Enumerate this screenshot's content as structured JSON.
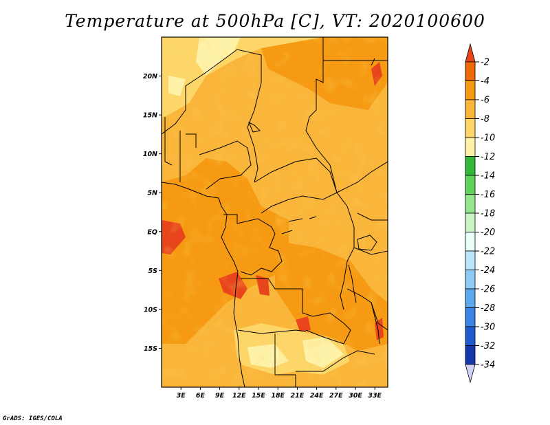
{
  "chart_data": {
    "type": "heatmap",
    "title": "Temperature at 500hPa [C], VT: 2020100600",
    "variable": "Temperature at 500hPa",
    "units": "C",
    "valid_time": "2020100600",
    "x_axis": {
      "ticks": [
        3,
        6,
        9,
        12,
        15,
        18,
        21,
        24,
        27,
        30,
        33
      ],
      "labels": [
        "3E",
        "6E",
        "9E",
        "12E",
        "15E",
        "18E",
        "21E",
        "24E",
        "27E",
        "30E",
        "33E"
      ],
      "range": [
        0,
        35
      ]
    },
    "y_axis": {
      "ticks": [
        20,
        15,
        10,
        5,
        0,
        -5,
        -10,
        -15
      ],
      "labels": [
        "20N",
        "15N",
        "10N",
        "5N",
        "EQ",
        "5S",
        "10S",
        "15S"
      ],
      "range": [
        -20,
        25
      ]
    },
    "colorbar": {
      "levels": [
        "-2",
        "-4",
        "-6",
        "-8",
        "-10",
        "-12",
        "-14",
        "-16",
        "-18",
        "-20",
        "-22",
        "-24",
        "-26",
        "-28",
        "-30",
        "-32",
        "-34"
      ],
      "colors": [
        "#e8451c",
        "#f06a0a",
        "#f59a12",
        "#f9b63a",
        "#fdd66a",
        "#fef2a8",
        "#33b83a",
        "#61d35a",
        "#95e58d",
        "#c8f4c2",
        "#eafcf8",
        "#bee6fb",
        "#8fcbf5",
        "#5ea8ee",
        "#3b84e4",
        "#1f5ad0",
        "#1336a8",
        "#0d1a6e",
        "#d2d2f8"
      ]
    },
    "field": [
      {
        "lon": [
          3,
          15
        ],
        "lat": [
          15,
          25
        ],
        "value": -8
      },
      {
        "lon": [
          15,
          20
        ],
        "lat": [
          18,
          25
        ],
        "value": -7
      },
      {
        "lon": [
          20,
          35
        ],
        "lat": [
          20,
          25
        ],
        "value": -5
      },
      {
        "lon": [
          24,
          35
        ],
        "lat": [
          5,
          20
        ],
        "value": -6
      },
      {
        "lon": [
          3,
          15
        ],
        "lat": [
          -5,
          8
        ],
        "value": -4
      },
      {
        "lon": [
          0,
          3
        ],
        "lat": [
          -2,
          2
        ],
        "value": -3
      },
      {
        "lon": [
          10,
          15
        ],
        "lat": [
          -10,
          -5
        ],
        "value": -3
      },
      {
        "lon": [
          15,
          28
        ],
        "lat": [
          -5,
          5
        ],
        "value": -6
      },
      {
        "lon": [
          17,
          26
        ],
        "lat": [
          -20,
          -12
        ],
        "value": -9
      },
      {
        "lon": [
          22,
          28
        ],
        "lat": [
          -15,
          -10
        ],
        "value": -3
      },
      {
        "lon": [
          28,
          35
        ],
        "lat": [
          -10,
          -3
        ],
        "value": -5
      }
    ]
  },
  "credit": "GrADS: IGES/COLA"
}
